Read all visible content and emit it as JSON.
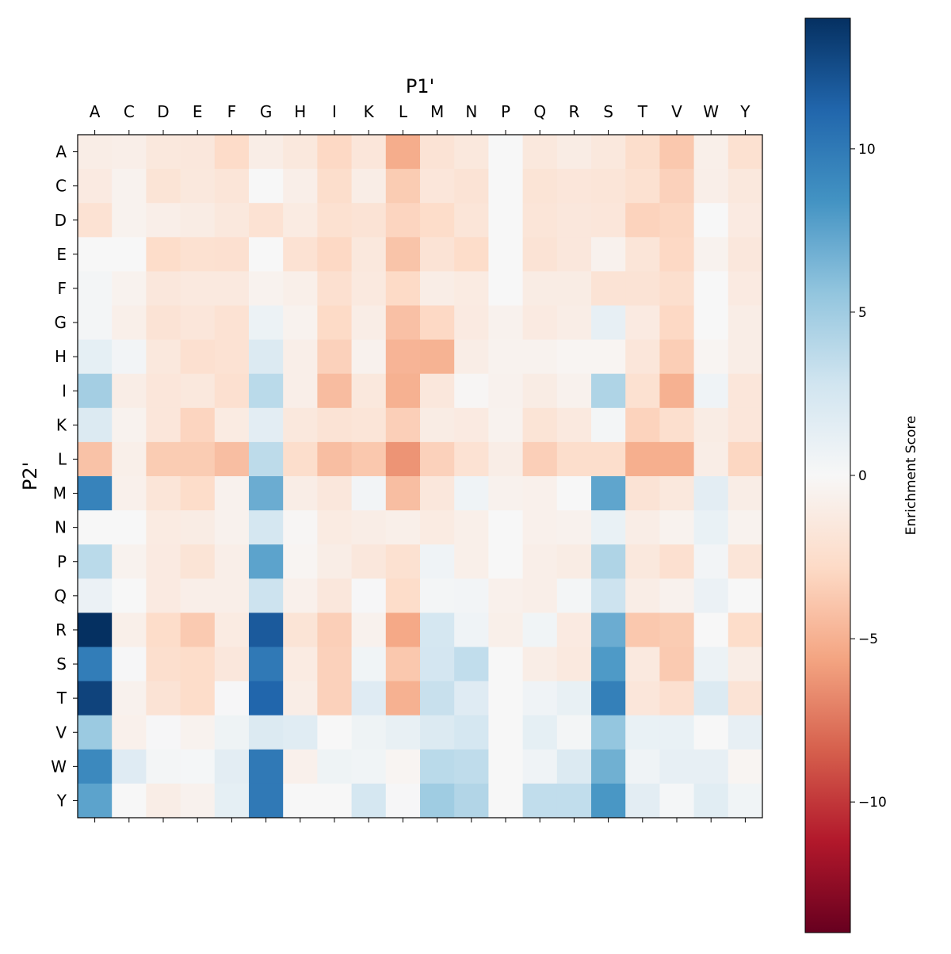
{
  "chart_data": {
    "type": "heatmap",
    "title": "",
    "xlabel": "P1'",
    "ylabel": "P2'",
    "x_position": "top",
    "x_categories": [
      "A",
      "C",
      "D",
      "E",
      "F",
      "G",
      "H",
      "I",
      "K",
      "L",
      "M",
      "N",
      "P",
      "Q",
      "R",
      "S",
      "T",
      "V",
      "W",
      "Y"
    ],
    "y_categories": [
      "A",
      "C",
      "D",
      "E",
      "F",
      "G",
      "H",
      "I",
      "K",
      "L",
      "M",
      "N",
      "P",
      "Q",
      "R",
      "S",
      "T",
      "V",
      "W",
      "Y"
    ],
    "colormap": "RdBu",
    "color_range": [
      -14,
      14
    ],
    "colorbar": {
      "label": "Enrichment Score",
      "ticks": [
        -10,
        -5,
        0,
        5,
        10
      ],
      "tick_labels": [
        "−10",
        "−5",
        "0",
        "5",
        "10"
      ]
    },
    "values": [
      [
        -1.0,
        -0.9,
        -1.5,
        -1.6,
        -2.7,
        -1.0,
        -1.5,
        -2.9,
        -1.7,
        -5.2,
        -2.0,
        -1.5,
        0,
        -1.5,
        -1.1,
        -1.5,
        -2.5,
        -3.8,
        -0.8,
        -2.2
      ],
      [
        -1.3,
        -0.5,
        -1.9,
        -1.5,
        -1.8,
        0,
        -0.9,
        -2.5,
        -1.0,
        -3.6,
        -1.7,
        -2.0,
        0,
        -1.9,
        -1.7,
        -1.8,
        -2.2,
        -3.3,
        -0.9,
        -1.5
      ],
      [
        -2.1,
        -0.5,
        -0.9,
        -1.1,
        -1.5,
        -2.1,
        -1.2,
        -2.2,
        -2.0,
        -3.1,
        -2.6,
        -1.8,
        0,
        -1.8,
        -1.6,
        -1.7,
        -3.2,
        -3.0,
        0,
        -1.3
      ],
      [
        0,
        0,
        -2.6,
        -2.2,
        -2.3,
        0,
        -2.1,
        -2.9,
        -1.5,
        -4.0,
        -2.0,
        -2.6,
        0,
        -2.0,
        -1.6,
        -0.6,
        -1.8,
        -2.9,
        -0.5,
        -1.6
      ],
      [
        0.3,
        -0.5,
        -1.6,
        -1.4,
        -1.4,
        -0.5,
        -0.8,
        -2.3,
        -1.4,
        -2.8,
        -1.0,
        -1.2,
        0,
        -1.1,
        -1.1,
        -2.0,
        -2.0,
        -2.4,
        0,
        -1.3
      ],
      [
        0.3,
        -0.8,
        -2.0,
        -1.7,
        -2.1,
        0.8,
        -0.5,
        -2.8,
        -1.0,
        -4.2,
        -2.9,
        -1.3,
        -0.6,
        -1.3,
        -1.0,
        1.2,
        -1.3,
        -2.9,
        0,
        -1.0
      ],
      [
        1.3,
        0.4,
        -1.5,
        -2.3,
        -2.1,
        2.0,
        -0.9,
        -3.3,
        -0.6,
        -4.8,
        -4.9,
        -1.0,
        -0.5,
        -0.5,
        -0.3,
        -0.3,
        -1.7,
        -3.5,
        -0.3,
        -1.0
      ],
      [
        4.8,
        -1.0,
        -1.7,
        -1.5,
        -2.3,
        3.8,
        -0.9,
        -4.4,
        -1.5,
        -5.0,
        -1.6,
        -0.2,
        -0.6,
        -1.1,
        -0.6,
        4.3,
        -2.2,
        -5.0,
        0.6,
        -1.7
      ],
      [
        2.0,
        -0.5,
        -1.7,
        -3.1,
        -1.2,
        1.5,
        -1.5,
        -2.0,
        -1.8,
        -3.4,
        -1.1,
        -1.3,
        -0.5,
        -1.9,
        -1.4,
        0.3,
        -3.2,
        -2.4,
        -1.1,
        -1.7
      ],
      [
        -4.1,
        -0.8,
        -3.6,
        -3.6,
        -4.3,
        3.7,
        -2.5,
        -4.3,
        -3.8,
        -6.3,
        -3.3,
        -2.1,
        -1.0,
        -3.4,
        -2.5,
        -2.5,
        -5.1,
        -5.1,
        -1.0,
        -3.0
      ],
      [
        9.4,
        -0.7,
        -1.8,
        -2.6,
        -0.6,
        7.0,
        -1.0,
        -1.6,
        0.4,
        -4.3,
        -1.6,
        0.6,
        -0.6,
        -0.7,
        0,
        7.4,
        -2.0,
        -1.5,
        1.5,
        -1.0
      ],
      [
        0,
        0,
        -1.2,
        -1.1,
        -0.6,
        2.5,
        -0.2,
        -1.2,
        -1.0,
        -0.8,
        -1.2,
        -0.8,
        0,
        -0.7,
        -0.6,
        1.0,
        -1.0,
        -0.5,
        1.0,
        -0.5
      ],
      [
        3.8,
        -0.5,
        -1.3,
        -1.9,
        -0.9,
        7.5,
        -0.3,
        -1.0,
        -1.6,
        -2.2,
        0.6,
        -0.8,
        0,
        -0.9,
        -1.1,
        4.3,
        -1.5,
        -2.3,
        0.4,
        -1.8
      ],
      [
        0.9,
        0,
        -1.3,
        -0.9,
        -0.9,
        3.0,
        -0.7,
        -1.6,
        0.1,
        -2.6,
        0.3,
        0.4,
        -0.7,
        -0.9,
        0.3,
        3.0,
        -1.0,
        -0.6,
        0.9,
        0
      ],
      [
        14,
        -0.8,
        -2.6,
        -3.7,
        -1.2,
        11.8,
        -1.9,
        -3.4,
        -0.6,
        -5.4,
        2.5,
        0.6,
        -0.8,
        0.5,
        -1.3,
        7.0,
        -3.8,
        -3.6,
        0,
        -2.6
      ],
      [
        9.8,
        0.1,
        -2.4,
        -2.6,
        -1.6,
        10.0,
        -1.2,
        -3.3,
        0.5,
        -3.8,
        2.6,
        3.5,
        0,
        -1.0,
        -1.4,
        8.0,
        -1.4,
        -3.7,
        0.8,
        -1.0
      ],
      [
        13,
        -0.6,
        -2.0,
        -2.6,
        0.1,
        11.2,
        -1.0,
        -3.3,
        1.8,
        -5.0,
        3.2,
        1.8,
        0,
        0.6,
        1.1,
        9.6,
        -1.7,
        -2.3,
        2.0,
        -2.0
      ],
      [
        5.2,
        -0.7,
        0.1,
        -0.5,
        0.7,
        2.0,
        1.7,
        0,
        0.7,
        1.1,
        2.0,
        2.5,
        0,
        1.3,
        0.3,
        5.5,
        1.0,
        1.0,
        0,
        1.2
      ],
      [
        9.0,
        1.8,
        0.3,
        0.2,
        1.5,
        10.0,
        -0.7,
        0.7,
        0.5,
        -0.3,
        3.8,
        3.6,
        0,
        0.6,
        2.0,
        6.8,
        0.6,
        1.2,
        1.2,
        -0.3
      ],
      [
        7.5,
        0,
        -1.0,
        -0.6,
        1.3,
        10.0,
        0,
        0,
        2.5,
        0.1,
        5.0,
        4.2,
        0,
        3.5,
        3.5,
        8.2,
        1.5,
        0.2,
        1.6,
        0.5
      ]
    ]
  }
}
